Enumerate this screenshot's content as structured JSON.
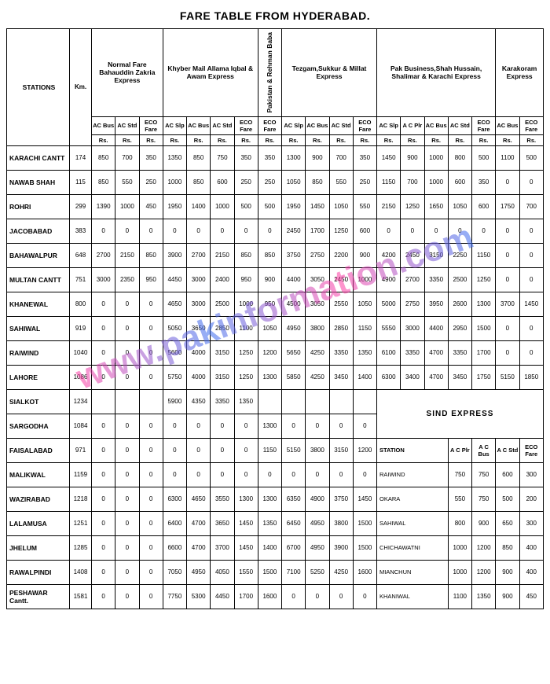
{
  "title": "FARE TABLE FROM HYDERABAD.",
  "watermark": "www.pakinformation.com",
  "headers": {
    "stations": "STATIONS",
    "km": "Km.",
    "g1": "Normal Fare Bahauddin Zakria Express",
    "g2": "Khyber Mail Allama Iqbal & Awam Express",
    "g3": "Pakistan & Rehman Baba",
    "g4": "Tezgam,Sukkur & Millat Express",
    "g5": "Pak Business,Shah Hussain, Shalimar & Karachi Express",
    "g6": "Karakoram Express",
    "cols": {
      "acbus": "AC Bus",
      "acstd": "AC Std",
      "eco": "ECO Fare",
      "acslp": "AC Slp",
      "acplr": "A C Plr"
    },
    "rs": "Rs."
  },
  "rows": [
    {
      "s": "KARACHI CANTT",
      "km": 174,
      "c": [
        850,
        700,
        350,
        1350,
        850,
        750,
        350,
        350,
        1300,
        900,
        700,
        350,
        1450,
        900,
        1000,
        800,
        500,
        1100,
        500
      ]
    },
    {
      "s": "NAWAB SHAH",
      "km": 115,
      "c": [
        850,
        550,
        250,
        1000,
        850,
        600,
        250,
        250,
        1050,
        850,
        550,
        250,
        1150,
        700,
        1000,
        600,
        350,
        0,
        0
      ]
    },
    {
      "s": "ROHRI",
      "km": 299,
      "c": [
        1390,
        1000,
        450,
        1950,
        1400,
        1000,
        500,
        500,
        1950,
        1450,
        1050,
        550,
        2150,
        1250,
        1650,
        1050,
        600,
        1750,
        700
      ]
    },
    {
      "s": "JACOBABAD",
      "km": 383,
      "c": [
        0,
        0,
        0,
        0,
        0,
        0,
        0,
        0,
        2450,
        1700,
        1250,
        600,
        0,
        0,
        0,
        0,
        0,
        0,
        0
      ]
    },
    {
      "s": "BAHAWALPUR",
      "km": 648,
      "c": [
        2700,
        2150,
        850,
        3900,
        2700,
        2150,
        850,
        850,
        3750,
        2750,
        2200,
        900,
        4200,
        2450,
        3150,
        2250,
        1150,
        0,
        0
      ]
    },
    {
      "s": "MULTAN CANTT",
      "km": 751,
      "c": [
        3000,
        2350,
        950,
        4450,
        3000,
        2400,
        950,
        900,
        4400,
        3050,
        2450,
        1000,
        4900,
        2700,
        3350,
        2500,
        1250,
        0,
        0
      ]
    },
    {
      "s": "KHANEWAL",
      "km": 800,
      "c": [
        0,
        0,
        0,
        4650,
        3000,
        2500,
        1000,
        950,
        4500,
        3050,
        2550,
        1050,
        5000,
        2750,
        3950,
        2600,
        1300,
        3700,
        1450
      ]
    },
    {
      "s": "SAHIWAL",
      "km": 919,
      "c": [
        0,
        0,
        0,
        5050,
        3650,
        2850,
        1100,
        1050,
        4950,
        3800,
        2850,
        1150,
        5550,
        3000,
        4400,
        2950,
        1500,
        0,
        0
      ]
    },
    {
      "s": "RAIWIND",
      "km": 1040,
      "c": [
        0,
        0,
        0,
        5600,
        4000,
        3150,
        1250,
        1200,
        5650,
        4250,
        3350,
        1350,
        6100,
        3350,
        4700,
        3350,
        1700,
        0,
        0
      ]
    },
    {
      "s": "LAHORE",
      "km": 1086,
      "c": [
        0,
        0,
        0,
        5750,
        4000,
        3150,
        1250,
        1300,
        5850,
        4250,
        3450,
        1400,
        6300,
        3400,
        4700,
        3450,
        1750,
        5150,
        1850
      ]
    }
  ],
  "rows2": [
    {
      "s": "SIALKOT",
      "km": 1234,
      "c": [
        "",
        "",
        "",
        5900,
        4350,
        3350,
        1350,
        "",
        "",
        "",
        "",
        ""
      ]
    },
    {
      "s": "SARGODHA",
      "km": 1084,
      "c": [
        0,
        0,
        0,
        0,
        0,
        0,
        0,
        1300,
        0,
        0,
        0,
        0
      ]
    },
    {
      "s": "FAISALABAD",
      "km": 971,
      "c": [
        0,
        0,
        0,
        0,
        0,
        0,
        0,
        1150,
        5150,
        3800,
        3150,
        1200
      ]
    },
    {
      "s": "MALIKWAL",
      "km": 1159,
      "c": [
        0,
        0,
        0,
        0,
        0,
        0,
        0,
        0,
        0,
        0,
        0,
        0
      ]
    },
    {
      "s": "WAZIRABAD",
      "km": 1218,
      "c": [
        0,
        0,
        0,
        6300,
        4650,
        3550,
        1300,
        1300,
        6350,
        4900,
        3750,
        1450
      ]
    },
    {
      "s": "LALAMUSA",
      "km": 1251,
      "c": [
        0,
        0,
        0,
        6400,
        4700,
        3650,
        1450,
        1350,
        6450,
        4950,
        3800,
        1500
      ]
    },
    {
      "s": "JHELUM",
      "km": 1285,
      "c": [
        0,
        0,
        0,
        6600,
        4700,
        3700,
        1450,
        1400,
        6700,
        4950,
        3900,
        1500
      ]
    },
    {
      "s": "RAWALPINDI",
      "km": 1408,
      "c": [
        0,
        0,
        0,
        7050,
        4950,
        4050,
        1550,
        1500,
        7100,
        5250,
        4250,
        1600
      ]
    },
    {
      "s": "PESHAWAR Cantt.",
      "km": 1581,
      "c": [
        0,
        0,
        0,
        7750,
        5300,
        4450,
        1700,
        1600,
        0,
        0,
        0,
        0
      ]
    }
  ],
  "sind": {
    "title": "SIND EXPRESS",
    "hdr_station": "STATION",
    "cols": [
      "A C Plr",
      "A C Bus",
      "A C Std",
      "ECO Fare"
    ],
    "rows": [
      {
        "s": "RAIWIND",
        "v": [
          750,
          750,
          600,
          300
        ]
      },
      {
        "s": "OKARA",
        "v": [
          550,
          750,
          500,
          200
        ]
      },
      {
        "s": "SAHIWAL",
        "v": [
          800,
          900,
          650,
          300
        ]
      },
      {
        "s": "CHICHAWATNI",
        "v": [
          1000,
          1200,
          850,
          400
        ]
      },
      {
        "s": "MIANCHUN",
        "v": [
          1000,
          1200,
          900,
          400
        ]
      },
      {
        "s": "KHANIWAL",
        "v": [
          1100,
          1350,
          900,
          450
        ]
      }
    ]
  }
}
